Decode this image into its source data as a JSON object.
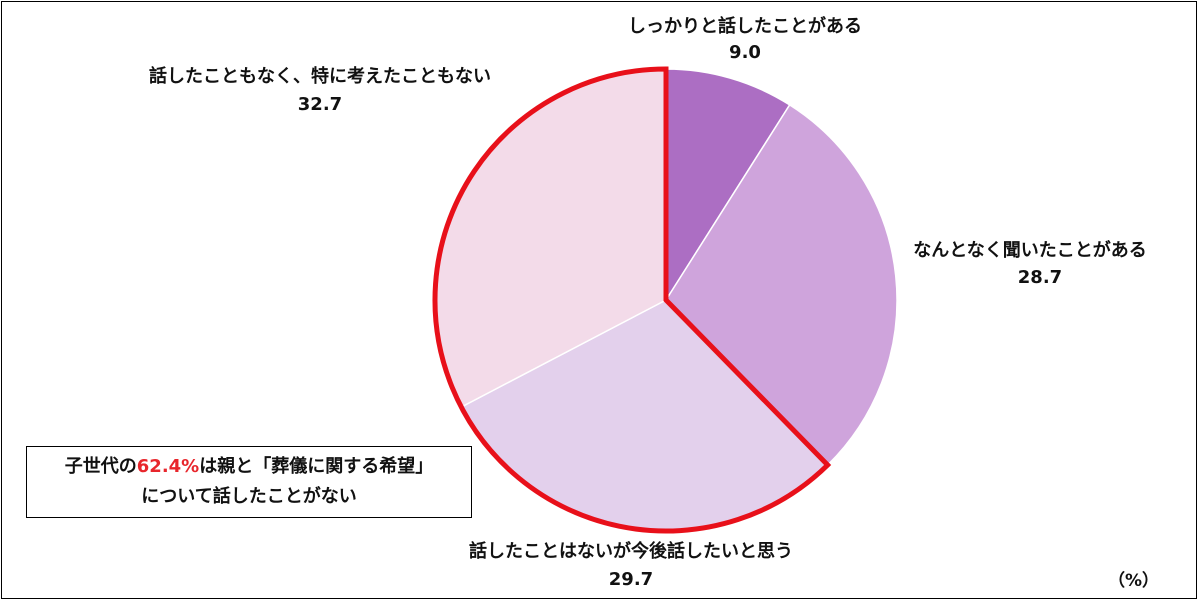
{
  "chart_data": {
    "type": "pie",
    "unit_label": "（%）",
    "slices": [
      {
        "label": "しっかりと話したことがある",
        "value": 9.0,
        "value_label": "9.0",
        "color": "#ac6ec3"
      },
      {
        "label": "なんとなく聞いたことがある",
        "value": 28.7,
        "value_label": "28.7",
        "color": "#cfa4dc"
      },
      {
        "label": "話したことはないが今後話したいと思う",
        "value": 29.7,
        "value_label": "29.7",
        "color": "#e3d0ec"
      },
      {
        "label": "話したこともなく、特に考えたこともない",
        "value": 32.7,
        "value_label": "32.7",
        "color": "#f3dbe9"
      }
    ],
    "highlight": {
      "slices": [
        2,
        3
      ],
      "outline_color": "#e8101a"
    }
  },
  "callout": {
    "line1_pre": "子世代の",
    "line1_highlight": "62.4%",
    "line1_post": "は親と「葬儀に関する希望」",
    "line2": "について話したことがない"
  }
}
